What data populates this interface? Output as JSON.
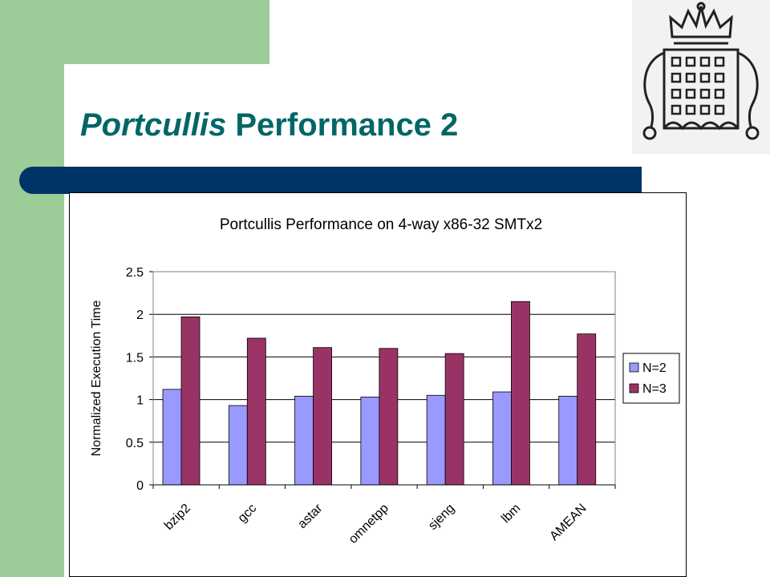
{
  "slide": {
    "title_italic": "Portcullis",
    "title_rest": " Performance 2"
  },
  "colors": {
    "green": "#9ccc98",
    "navy": "#003366",
    "title": "#006666"
  },
  "icons": {
    "crest": "portcullis-crest-icon"
  },
  "chart_data": {
    "type": "bar",
    "title": "Portcullis Performance on 4-way x86-32 SMTx2",
    "xlabel": "",
    "ylabel": "Normalized Execution Time",
    "categories": [
      "bzip2",
      "gcc",
      "astar",
      "omnetpp",
      "sjeng",
      "lbm",
      "AMEAN"
    ],
    "series": [
      {
        "name": "N=2",
        "color": "#9999ff",
        "values": [
          1.12,
          0.93,
          1.04,
          1.03,
          1.05,
          1.09,
          1.04
        ]
      },
      {
        "name": "N=3",
        "color": "#993366",
        "values": [
          1.97,
          1.72,
          1.61,
          1.6,
          1.54,
          2.15,
          1.77
        ]
      }
    ],
    "ylim": [
      0,
      2.5
    ],
    "yticks": [
      "0",
      "0.5",
      "1",
      "1.5",
      "2",
      "2.5"
    ],
    "grid": true,
    "legend": "right"
  }
}
